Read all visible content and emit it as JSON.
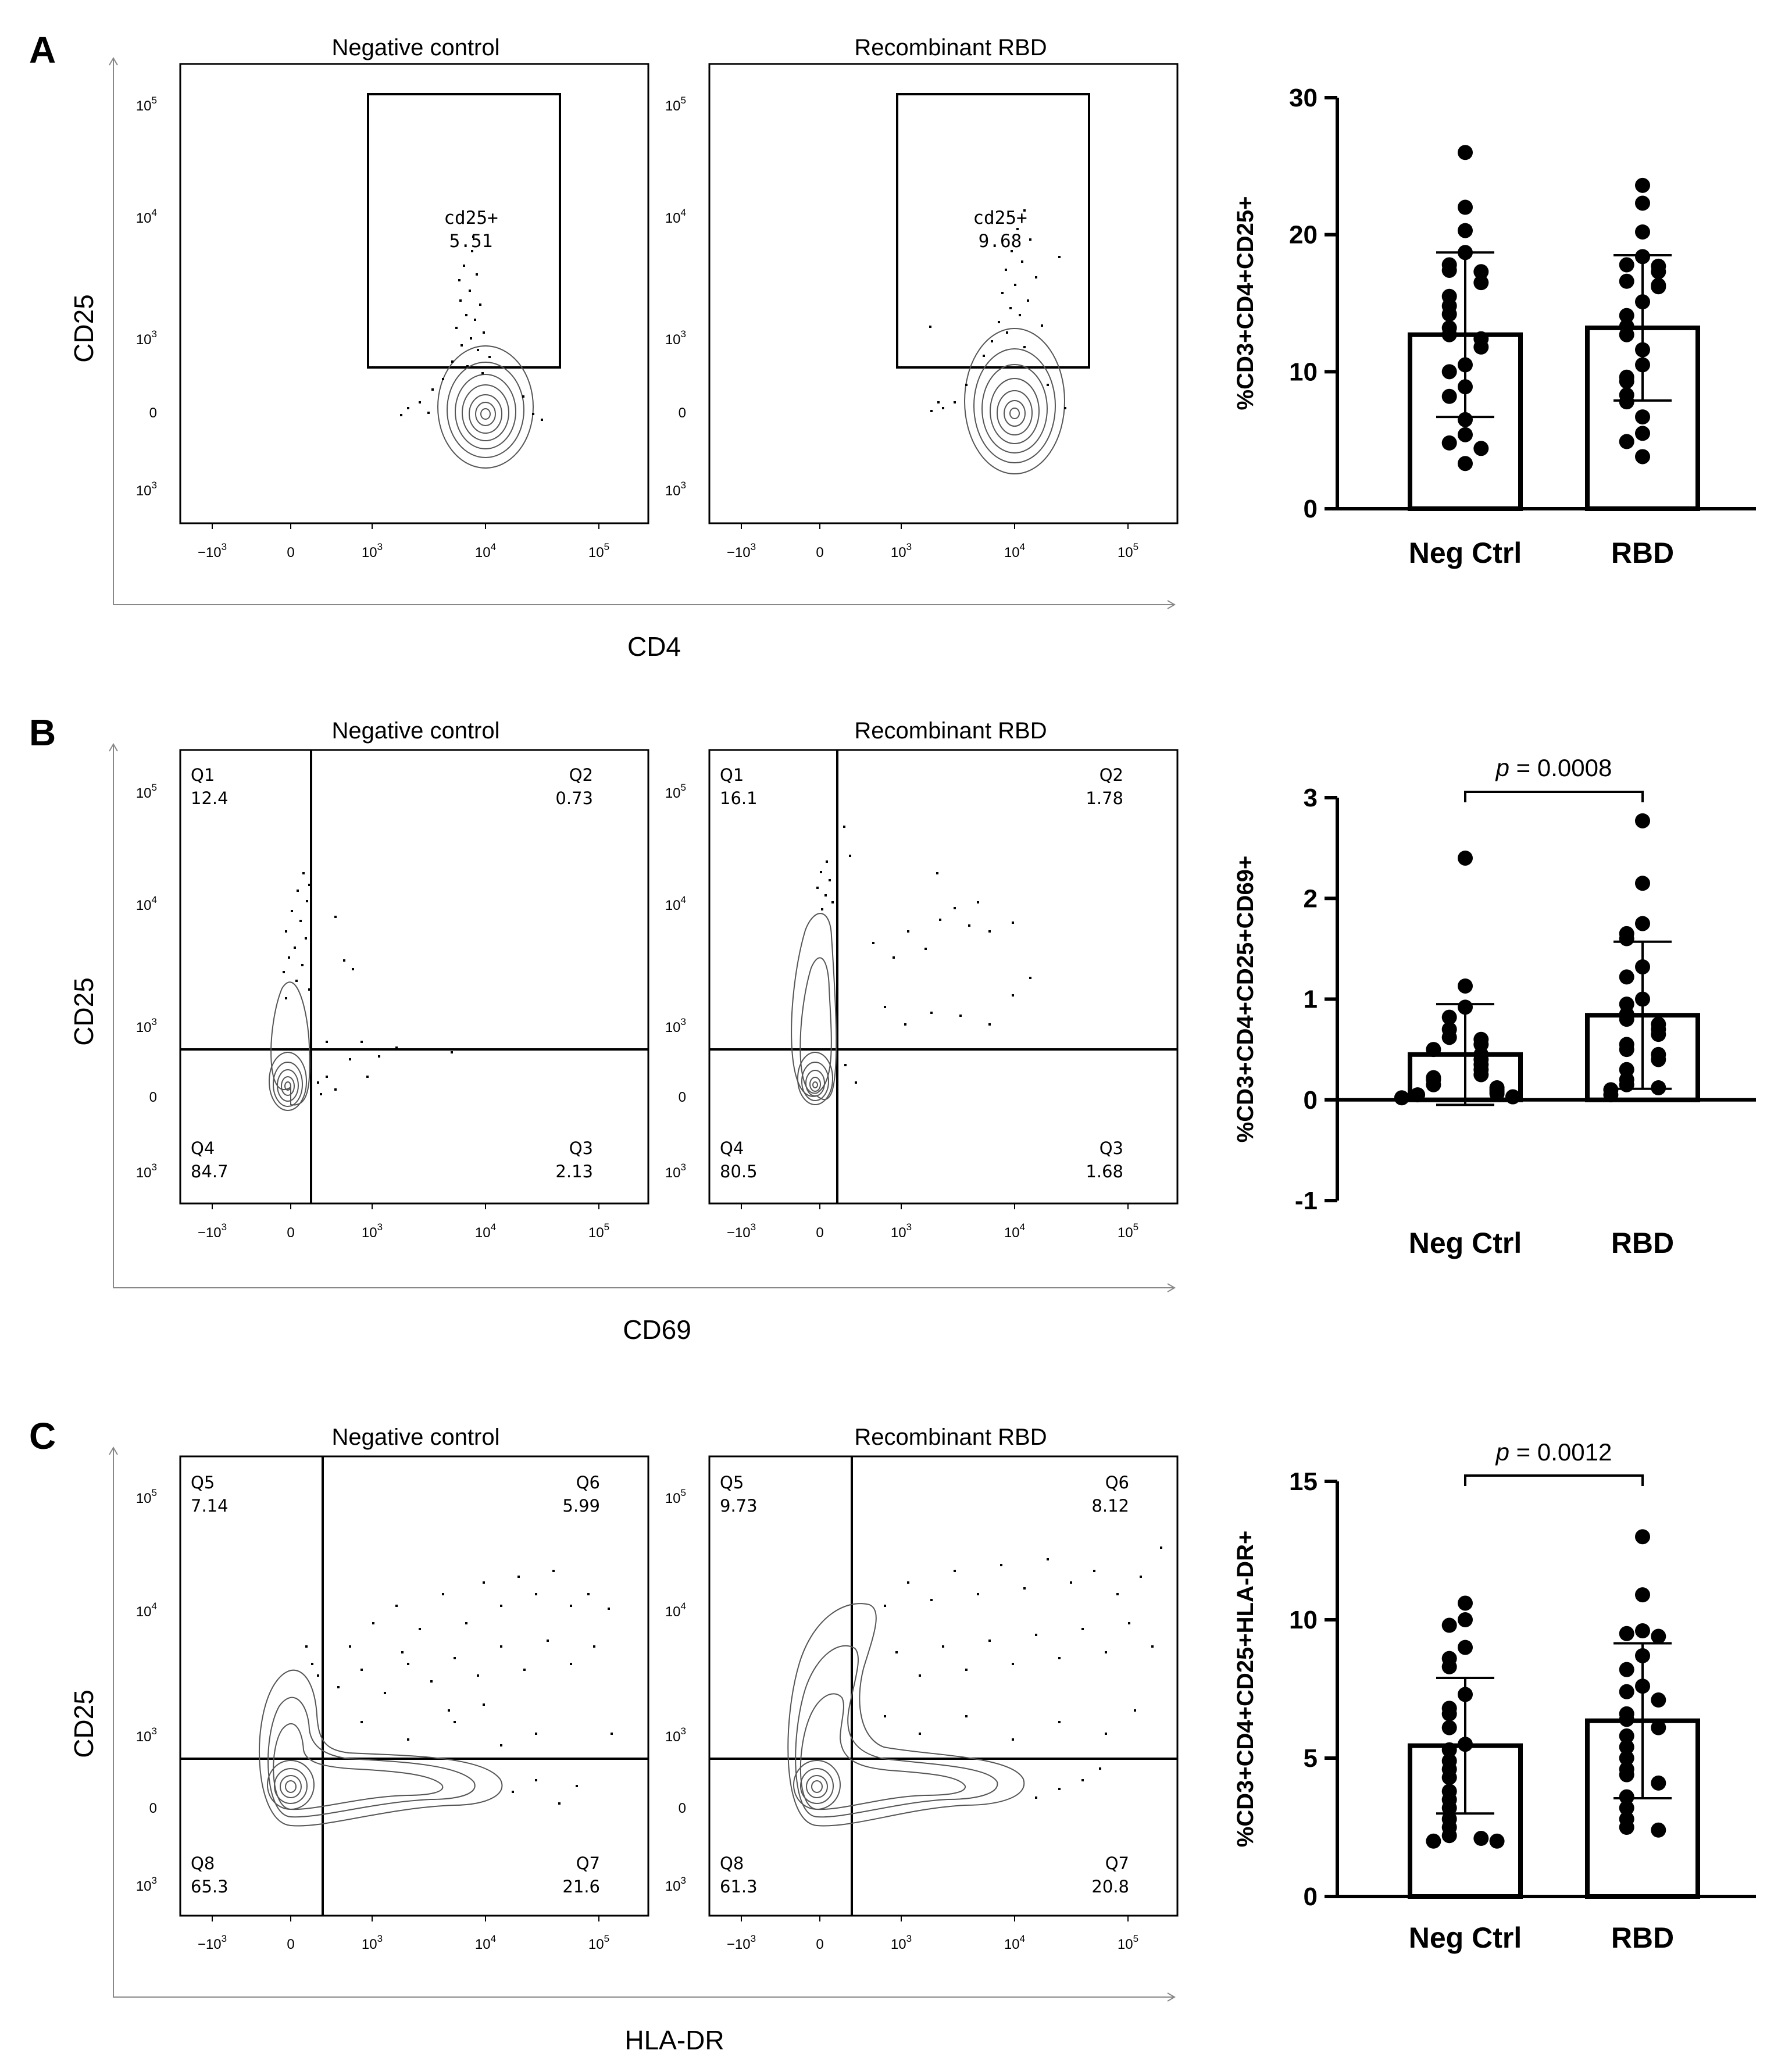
{
  "panels": {
    "A": {
      "letter": "A",
      "flow_xlabel": "CD4",
      "flow_ylabel": "CD25",
      "plots": [
        {
          "title": "Negative control",
          "gate_label": "cd25+",
          "gate_value": "5.51"
        },
        {
          "title": "Recombinant RBD",
          "gate_label": "cd25+",
          "gate_value": "9.68"
        }
      ]
    },
    "B": {
      "letter": "B",
      "flow_xlabel": "CD69",
      "flow_ylabel": "CD25",
      "plots": [
        {
          "title": "Negative control",
          "quadrants": {
            "tl": [
              "Q1",
              "12.4"
            ],
            "tr": [
              "Q2",
              "0.73"
            ],
            "bl": [
              "Q4",
              "84.7"
            ],
            "br": [
              "Q3",
              "2.13"
            ]
          }
        },
        {
          "title": "Recombinant RBD",
          "quadrants": {
            "tl": [
              "Q1",
              "16.1"
            ],
            "tr": [
              "Q2",
              "1.78"
            ],
            "bl": [
              "Q4",
              "80.5"
            ],
            "br": [
              "Q3",
              "1.68"
            ]
          }
        }
      ]
    },
    "C": {
      "letter": "C",
      "flow_xlabel": "HLA-DR",
      "flow_ylabel": "CD25",
      "plots": [
        {
          "title": "Negative control",
          "quadrants": {
            "tl": [
              "Q5",
              "7.14"
            ],
            "tr": [
              "Q6",
              "5.99"
            ],
            "bl": [
              "Q8",
              "65.3"
            ],
            "br": [
              "Q7",
              "21.6"
            ]
          }
        },
        {
          "title": "Recombinant RBD",
          "quadrants": {
            "tl": [
              "Q5",
              "9.73"
            ],
            "tr": [
              "Q6",
              "8.12"
            ],
            "bl": [
              "Q8",
              "61.3"
            ],
            "br": [
              "Q7",
              "20.8"
            ]
          }
        }
      ]
    }
  },
  "flow_axis_ticks": {
    "x": [
      {
        "base": "−10",
        "exp": "3"
      },
      {
        "base": "0",
        "exp": ""
      },
      {
        "base": "10",
        "exp": "3"
      },
      {
        "base": "10",
        "exp": "4"
      },
      {
        "base": "10",
        "exp": "5"
      }
    ],
    "y": [
      {
        "base": "10",
        "exp": "5"
      },
      {
        "base": "10",
        "exp": "4"
      },
      {
        "base": "10",
        "exp": "3"
      },
      {
        "base": "0",
        "exp": ""
      },
      {
        "base": "10",
        "exp": "3"
      }
    ]
  },
  "chart_data": [
    {
      "panel": "A",
      "type": "bar",
      "categories": [
        "Neg Ctrl",
        "RBD"
      ],
      "ylabel": "%CD3+CD4+CD25+",
      "ylim": [
        0,
        30
      ],
      "yticks": [
        0,
        10,
        20,
        30
      ],
      "means": [
        12.7,
        13.2
      ],
      "sd": [
        6.0,
        5.3
      ],
      "points": [
        [
          26.0,
          22.0,
          20.3,
          18.7,
          17.8,
          17.4,
          17.3,
          16.5,
          15.5,
          14.8,
          14.2,
          13.2,
          12.7,
          12.4,
          11.8,
          10.5,
          10.0,
          8.9,
          8.2,
          6.5,
          5.4,
          4.8,
          4.4,
          3.3
        ],
        [
          23.6,
          22.3,
          20.2,
          18.4,
          17.8,
          17.7,
          17.3,
          16.6,
          16.3,
          16.2,
          15.1,
          14.1,
          13.3,
          12.7,
          11.6,
          10.5,
          9.6,
          9.3,
          8.3,
          7.8,
          6.7,
          5.5,
          4.9,
          3.8
        ]
      ]
    },
    {
      "panel": "B",
      "type": "bar",
      "categories": [
        "Neg Ctrl",
        "RBD"
      ],
      "ylabel": "%CD3+CD4+CD25+CD69+",
      "ylim": [
        -1,
        3
      ],
      "yticks": [
        -1,
        0,
        1,
        2,
        3
      ],
      "means": [
        0.45,
        0.84
      ],
      "sd": [
        0.5,
        0.73
      ],
      "points": [
        [
          2.4,
          1.13,
          0.92,
          0.82,
          0.7,
          0.62,
          0.6,
          0.55,
          0.5,
          0.45,
          0.4,
          0.35,
          0.3,
          0.25,
          0.22,
          0.2,
          0.15,
          0.12,
          0.1,
          0.08,
          0.06,
          0.05,
          0.03,
          0.02
        ],
        [
          2.77,
          2.15,
          1.75,
          1.65,
          1.6,
          1.32,
          1.22,
          1.0,
          0.95,
          0.85,
          0.8,
          0.75,
          0.7,
          0.65,
          0.55,
          0.5,
          0.45,
          0.4,
          0.3,
          0.2,
          0.15,
          0.12,
          0.1,
          0.05
        ]
      ],
      "annotation": {
        "p_label": "p",
        "p_text": " = 0.0008"
      }
    },
    {
      "panel": "C",
      "type": "bar",
      "categories": [
        "Neg Ctrl",
        "RBD"
      ],
      "ylabel": "%CD3+CD4+CD25+HLA-DR+",
      "ylim": [
        0,
        15
      ],
      "yticks": [
        0,
        5,
        10,
        15
      ],
      "means": [
        5.45,
        6.35
      ],
      "sd": [
        2.45,
        2.8
      ],
      "points": [
        [
          10.6,
          10.0,
          9.8,
          9.0,
          8.6,
          8.3,
          7.3,
          6.8,
          6.6,
          6.1,
          5.5,
          5.3,
          4.9,
          4.6,
          4.3,
          3.8,
          3.5,
          3.2,
          2.8,
          2.5,
          2.2,
          2.1,
          2.0,
          2.0
        ],
        [
          13.0,
          10.9,
          9.6,
          9.5,
          9.4,
          8.7,
          8.2,
          7.6,
          7.4,
          7.1,
          6.6,
          6.4,
          6.1,
          5.8,
          5.4,
          5.0,
          4.6,
          4.4,
          4.1,
          3.6,
          3.2,
          2.8,
          2.5,
          2.4
        ]
      ],
      "annotation": {
        "p_label": "p",
        "p_text": " = 0.0012"
      }
    }
  ]
}
